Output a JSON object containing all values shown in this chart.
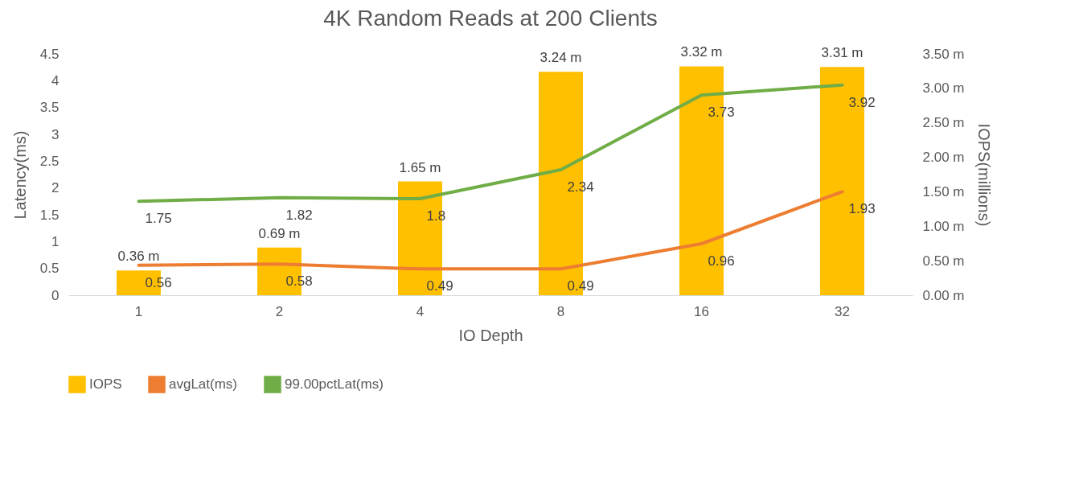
{
  "chart_data": {
    "type": "bar",
    "title": "4K Random Reads at 200 Clients",
    "xlabel": "IO Depth",
    "ylabel": "Latency(ms)",
    "y2label": "IOPS(millions)",
    "categories": [
      "1",
      "2",
      "4",
      "8",
      "16",
      "32"
    ],
    "ylim": [
      0,
      4.5
    ],
    "yticks": [
      0,
      0.5,
      1,
      1.5,
      2,
      2.5,
      3,
      3.5,
      4,
      4.5
    ],
    "y2lim": [
      0,
      3.5
    ],
    "y2ticks": [
      {
        "value": 0,
        "label": "0.00 m"
      },
      {
        "value": 0.5,
        "label": "0.50 m"
      },
      {
        "value": 1,
        "label": "1.00 m"
      },
      {
        "value": 1.5,
        "label": "1.50 m"
      },
      {
        "value": 2,
        "label": "2.00 m"
      },
      {
        "value": 2.5,
        "label": "2.50 m"
      },
      {
        "value": 3,
        "label": "3.00 m"
      },
      {
        "value": 3.5,
        "label": "3.50 m"
      }
    ],
    "legend": "bottom",
    "series": [
      {
        "name": "IOPS",
        "axis": "y2",
        "color": "#ffc000",
        "values": [
          0.36,
          0.69,
          1.65,
          3.24,
          3.32,
          3.31
        ],
        "value_labels": [
          "0.36 m",
          "0.69 m",
          "1.65 m",
          "3.24 m",
          "3.32 m",
          "3.31 m"
        ]
      },
      {
        "name": "avgLat(ms)",
        "type": "line",
        "color": "#ed7d31",
        "values": [
          0.56,
          0.58,
          0.49,
          0.49,
          0.96,
          1.93
        ],
        "value_labels": [
          "0.56",
          "0.58",
          "0.49",
          "0.49",
          "0.96",
          "1.93"
        ]
      },
      {
        "name": "99.00pctLat(ms)",
        "type": "line",
        "color": "#70ad47",
        "values": [
          1.75,
          1.82,
          1.8,
          2.34,
          3.73,
          3.92
        ],
        "value_labels": [
          "1.75",
          "1.82",
          "1.8",
          "2.34",
          "3.73",
          "3.92"
        ]
      }
    ]
  }
}
